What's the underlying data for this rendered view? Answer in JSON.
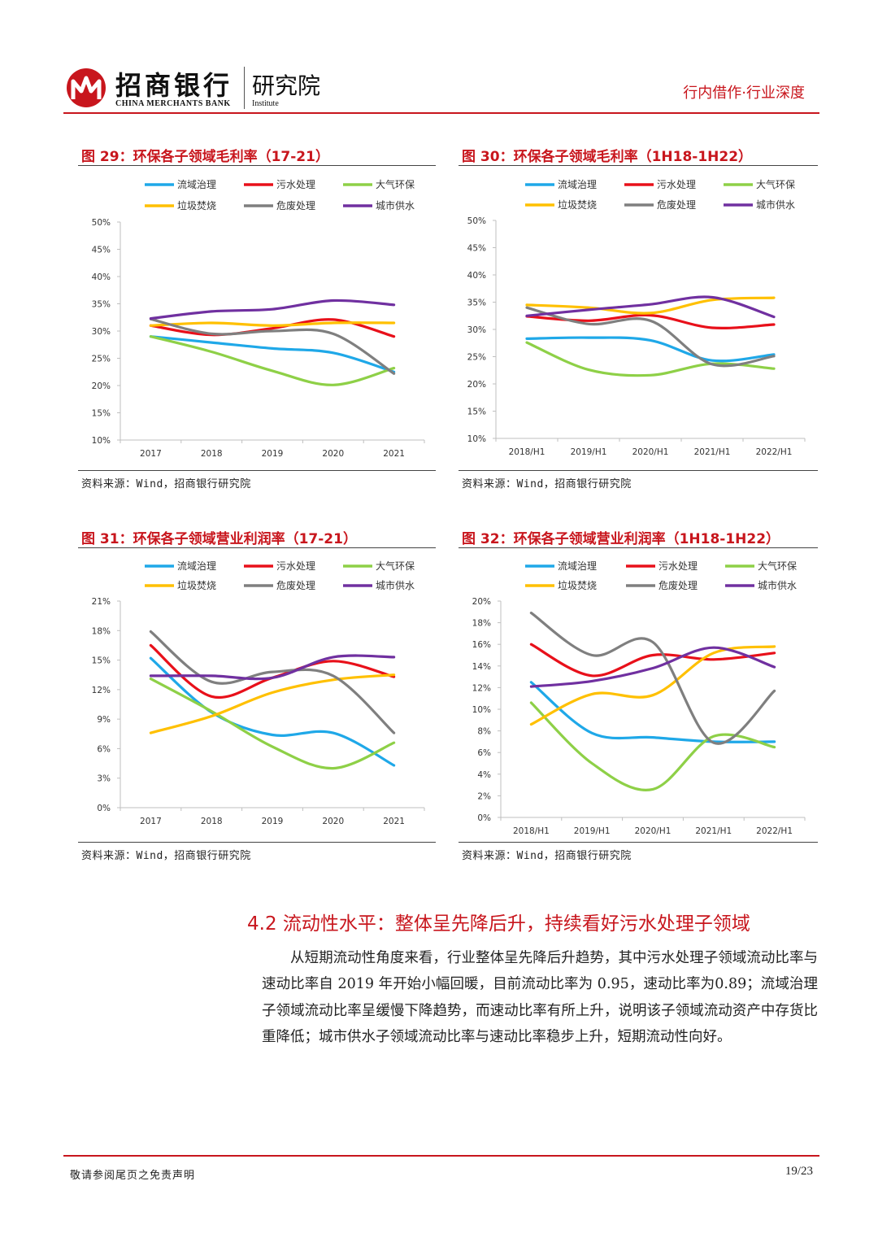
{
  "header": {
    "bank_name_cn": "招商银行",
    "bank_name_en": "CHINA MERCHANTS BANK",
    "institute_cn": "研究院",
    "institute_en": "Institute",
    "report_tag": "行内借作·行业深度"
  },
  "figures": [
    {
      "title": "图 29：环保各子领域毛利率（17-21）",
      "source": "资料来源：Wind，招商银行研究院"
    },
    {
      "title": "图 30：环保各子领域毛利率（1H18-1H22）",
      "source": "资料来源：Wind，招商银行研究院"
    },
    {
      "title": "图 31：环保各子领域营业利润率（17-21）",
      "source": "资料来源：Wind，招商银行研究院"
    },
    {
      "title": "图 32：环保各子领域营业利润率（1H18-1H22）",
      "source": "资料来源：Wind，招商银行研究院"
    }
  ],
  "chart_data": [
    {
      "type": "line",
      "title": "图 29：环保各子领域毛利率（17-21）",
      "x": [
        "2017",
        "2018",
        "2019",
        "2020",
        "2021"
      ],
      "ylim": [
        0.1,
        0.5
      ],
      "yticks": [
        0.1,
        0.15,
        0.2,
        0.25,
        0.3,
        0.35,
        0.4,
        0.45,
        0.5
      ],
      "ytick_labels": [
        "10%",
        "15%",
        "20%",
        "25%",
        "30%",
        "35%",
        "40%",
        "45%",
        "50%"
      ],
      "legend": "top",
      "grid": false,
      "series": [
        {
          "name": "流域治理",
          "color": "#1fa8e8",
          "values": [
            0.29,
            0.279,
            0.268,
            0.26,
            0.225
          ]
        },
        {
          "name": "污水处理",
          "color": "#e8101a",
          "values": [
            0.31,
            0.293,
            0.305,
            0.321,
            0.29
          ]
        },
        {
          "name": "大气环保",
          "color": "#8ed047",
          "values": [
            0.29,
            0.262,
            0.227,
            0.201,
            0.232
          ]
        },
        {
          "name": "垃圾焚烧",
          "color": "#ffc000",
          "values": [
            0.31,
            0.315,
            0.31,
            0.315,
            0.315
          ]
        },
        {
          "name": "危废处理",
          "color": "#7f7f7f",
          "values": [
            0.322,
            0.295,
            0.3,
            0.295,
            0.222
          ]
        },
        {
          "name": "城市供水",
          "color": "#7030a0",
          "values": [
            0.323,
            0.336,
            0.34,
            0.356,
            0.348
          ]
        }
      ]
    },
    {
      "type": "line",
      "title": "图 30：环保各子领域毛利率（1H18-1H22）",
      "x": [
        "2018/H1",
        "2019/H1",
        "2020/H1",
        "2021/H1",
        "2022/H1"
      ],
      "ylim": [
        0.1,
        0.5
      ],
      "yticks": [
        0.1,
        0.15,
        0.2,
        0.25,
        0.3,
        0.35,
        0.4,
        0.45,
        0.5
      ],
      "ytick_labels": [
        "10%",
        "15%",
        "20%",
        "25%",
        "30%",
        "35%",
        "40%",
        "45%",
        "50%"
      ],
      "legend": "top",
      "grid": false,
      "series": [
        {
          "name": "流域治理",
          "color": "#1fa8e8",
          "values": [
            0.283,
            0.285,
            0.28,
            0.243,
            0.254
          ]
        },
        {
          "name": "污水处理",
          "color": "#e8101a",
          "values": [
            0.324,
            0.316,
            0.326,
            0.303,
            0.309
          ]
        },
        {
          "name": "大气环保",
          "color": "#8ed047",
          "values": [
            0.276,
            0.226,
            0.216,
            0.237,
            0.228
          ]
        },
        {
          "name": "垃圾焚烧",
          "color": "#ffc000",
          "values": [
            0.345,
            0.34,
            0.33,
            0.354,
            0.358
          ]
        },
        {
          "name": "危废处理",
          "color": "#7f7f7f",
          "values": [
            0.34,
            0.31,
            0.316,
            0.236,
            0.251
          ]
        },
        {
          "name": "城市供水",
          "color": "#7030a0",
          "values": [
            0.325,
            0.336,
            0.346,
            0.359,
            0.323
          ]
        }
      ]
    },
    {
      "type": "line",
      "title": "图 31：环保各子领域营业利润率（17-21）",
      "x": [
        "2017",
        "2018",
        "2019",
        "2020",
        "2021"
      ],
      "ylim": [
        0.0,
        0.21
      ],
      "yticks": [
        0.0,
        0.03,
        0.06,
        0.09,
        0.12,
        0.15,
        0.18,
        0.21
      ],
      "ytick_labels": [
        "0%",
        "3%",
        "6%",
        "9%",
        "12%",
        "15%",
        "18%",
        "21%"
      ],
      "legend": "top",
      "grid": false,
      "series": [
        {
          "name": "流域治理",
          "color": "#1fa8e8",
          "values": [
            0.152,
            0.097,
            0.074,
            0.076,
            0.043
          ]
        },
        {
          "name": "污水处理",
          "color": "#e8101a",
          "values": [
            0.165,
            0.113,
            0.132,
            0.149,
            0.133
          ]
        },
        {
          "name": "大气环保",
          "color": "#8ed047",
          "values": [
            0.131,
            0.098,
            0.062,
            0.04,
            0.066
          ]
        },
        {
          "name": "垃圾焚烧",
          "color": "#ffc000",
          "values": [
            0.076,
            0.093,
            0.117,
            0.13,
            0.135
          ]
        },
        {
          "name": "危废处理",
          "color": "#7f7f7f",
          "values": [
            0.179,
            0.128,
            0.138,
            0.134,
            0.076
          ]
        },
        {
          "name": "城市供水",
          "color": "#7030a0",
          "values": [
            0.134,
            0.134,
            0.132,
            0.153,
            0.153
          ]
        }
      ]
    },
    {
      "type": "line",
      "title": "图 32：环保各子领域营业利润率（1H18-1H22）",
      "x": [
        "2018/H1",
        "2019/H1",
        "2020/H1",
        "2021/H1",
        "2022/H1"
      ],
      "ylim": [
        0.0,
        0.2
      ],
      "yticks": [
        0.0,
        0.02,
        0.04,
        0.06,
        0.08,
        0.1,
        0.12,
        0.14,
        0.16,
        0.18,
        0.2
      ],
      "ytick_labels": [
        "0%",
        "2%",
        "4%",
        "6%",
        "8%",
        "10%",
        "12%",
        "14%",
        "16%",
        "18%",
        "20%"
      ],
      "legend": "top",
      "grid": false,
      "series": [
        {
          "name": "流域治理",
          "color": "#1fa8e8",
          "values": [
            0.125,
            0.078,
            0.074,
            0.07,
            0.07
          ]
        },
        {
          "name": "污水处理",
          "color": "#e8101a",
          "values": [
            0.16,
            0.131,
            0.15,
            0.146,
            0.152
          ]
        },
        {
          "name": "大气环保",
          "color": "#8ed047",
          "values": [
            0.106,
            0.05,
            0.026,
            0.075,
            0.065
          ]
        },
        {
          "name": "垃圾焚烧",
          "color": "#ffc000",
          "values": [
            0.086,
            0.114,
            0.113,
            0.152,
            0.158
          ]
        },
        {
          "name": "危废处理",
          "color": "#7f7f7f",
          "values": [
            0.189,
            0.15,
            0.162,
            0.069,
            0.117
          ]
        },
        {
          "name": "城市供水",
          "color": "#7030a0",
          "values": [
            0.121,
            0.126,
            0.138,
            0.157,
            0.139
          ]
        }
      ]
    }
  ],
  "section": {
    "title": "4.2 流动性水平：整体呈先降后升，持续看好污水处理子领域",
    "paragraph": "从短期流动性角度来看，行业整体呈先降后升趋势，其中污水处理子领域流动比率与速动比率自 2019 年开始小幅回暖，目前流动比率为 0.95，速动比率为0.89；流域治理子领域流动比率呈缓慢下降趋势，而速动比率有所上升，说明该子领域流动资产中存货比重降低；城市供水子领域流动比率与速动比率稳步上升，短期流动性向好。"
  },
  "footer": {
    "disclaimer": "敬请参阅尾页之免责声明",
    "page": "19/23"
  }
}
